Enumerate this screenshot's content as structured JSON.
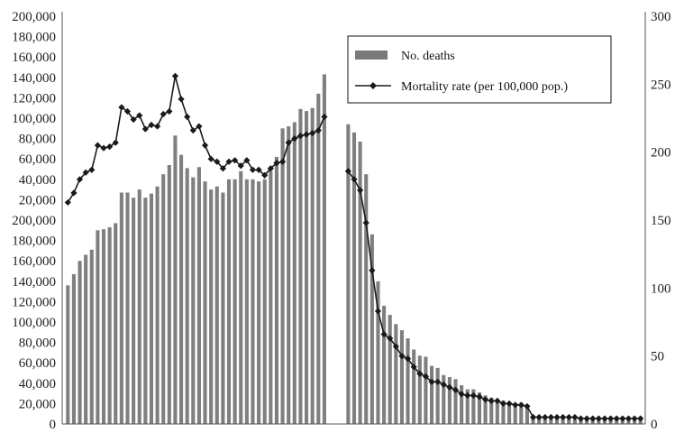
{
  "chart_data": {
    "type": "bar+line",
    "left_axis": {
      "min": 0,
      "max": 400000,
      "tick_values": [
        0,
        20000,
        40000,
        60000,
        80000,
        100000,
        120000,
        140000,
        160000,
        180000,
        200000
      ],
      "tick_labels": [
        "0",
        "20,000",
        "40,000",
        "60,000",
        "80,000",
        "100,000",
        "120,000",
        "140,000",
        "160,000",
        "180,000",
        "200,000"
      ]
    },
    "right_axis": {
      "min": 0,
      "max": 300,
      "tick_values": [
        0,
        50,
        100,
        150,
        200,
        250,
        300
      ],
      "tick_labels": [
        "0",
        "50",
        "100",
        "150",
        "200",
        "250",
        "300"
      ]
    },
    "grid": false,
    "legend": {
      "position": "top-right",
      "entries": [
        {
          "name": "No. deaths",
          "kind": "bar",
          "color": "#7a7a7a"
        },
        {
          "name": "Mortality rate (per 100,000 pop.)",
          "kind": "line-diamond",
          "color": "#1a1a1a"
        }
      ]
    },
    "series": [
      {
        "name": "No. deaths",
        "type": "bar",
        "values": [
          136000,
          147000,
          160000,
          166000,
          171000,
          190000,
          191000,
          193000,
          197000,
          227000,
          227000,
          222000,
          230000,
          222000,
          226000,
          233000,
          245000,
          254000,
          283000,
          264000,
          251000,
          242000,
          252000,
          238000,
          230000,
          233000,
          227000,
          240000,
          240000,
          248000,
          240000,
          240000,
          238000,
          240000,
          248000,
          262000,
          290000,
          292000,
          296000,
          309000,
          307000,
          310000,
          324000,
          343000,
          null,
          null,
          null,
          294000,
          286000,
          277000,
          245000,
          186000,
          140000,
          116000,
          107000,
          98000,
          92000,
          84000,
          73000,
          67000,
          66000,
          57000,
          55000,
          48000,
          46000,
          44000,
          38000,
          34000,
          34000,
          31000,
          28000,
          26000,
          24000,
          23000,
          21000,
          20000,
          19000,
          17500,
          8500,
          7500,
          6500,
          5500,
          5200,
          5000,
          4800,
          4600,
          4500,
          4300,
          4200,
          4000,
          3900,
          3800,
          3700,
          3600,
          3500,
          3400,
          3300
        ]
      },
      {
        "name": "Mortality rate (per 100,000 pop.)",
        "type": "line",
        "values": [
          163,
          170,
          180,
          185,
          187,
          205,
          203,
          204,
          207,
          233,
          230,
          224,
          227,
          217,
          220,
          219,
          228,
          230,
          256,
          239,
          226,
          216,
          219,
          205,
          195,
          193,
          188,
          193,
          194,
          190,
          194,
          187,
          187,
          183,
          188,
          192,
          193,
          207,
          210,
          212,
          213,
          214,
          216,
          226,
          null,
          null,
          null,
          186,
          180,
          172,
          148,
          113,
          83,
          66,
          63,
          57,
          50,
          48,
          42,
          37,
          35,
          31,
          31,
          29,
          27,
          25,
          22,
          21,
          21,
          20,
          18,
          17,
          17,
          15,
          15,
          14,
          14,
          13,
          5,
          5,
          5,
          5,
          5,
          5,
          5,
          5,
          4,
          4,
          4,
          4,
          4,
          4,
          4,
          4,
          4,
          4,
          4
        ]
      }
    ]
  }
}
